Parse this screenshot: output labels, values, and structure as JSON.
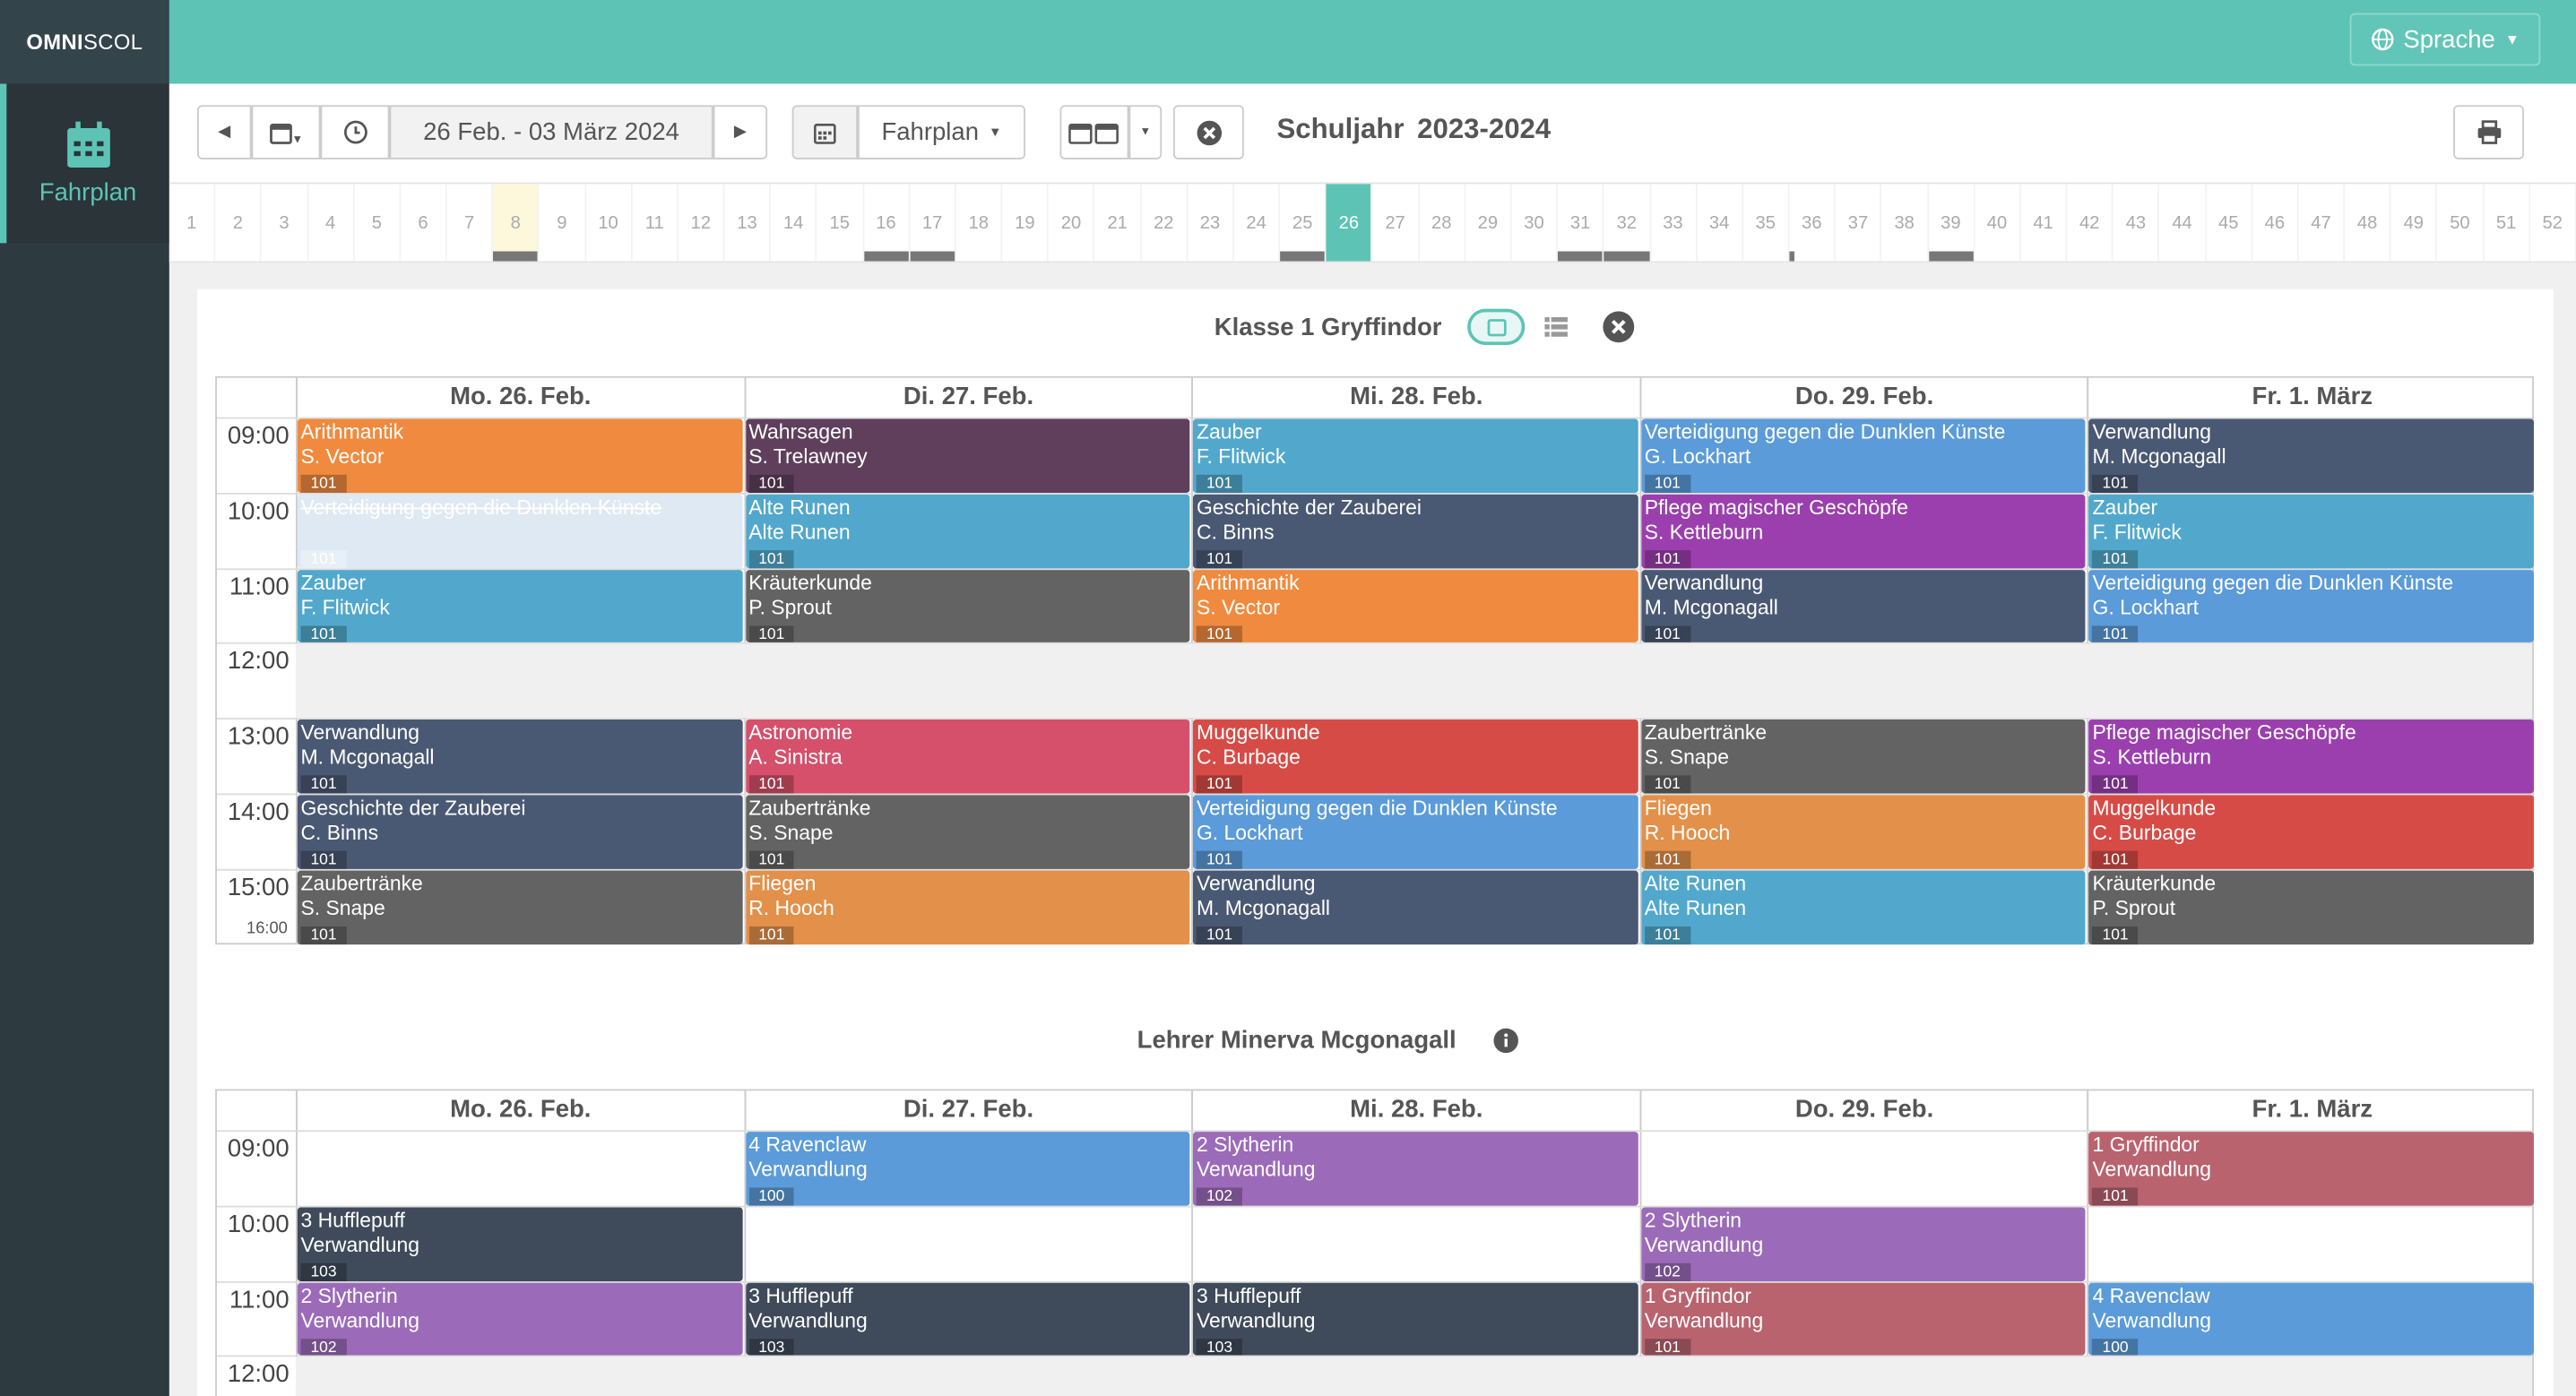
{
  "app": {
    "brand_bold": "OMNI",
    "brand_thin": "SCOL",
    "nav_label": "Fahrplan",
    "language": "Sprache"
  },
  "toolbar": {
    "date_range": "26 Feb. - 03 März 2024",
    "view": "Fahrplan",
    "schuljahr_label": "Schuljahr",
    "schuljahr": "2023-2024"
  },
  "weeks": [
    "1",
    "2",
    "3",
    "4",
    "5",
    "6",
    "7",
    "8",
    "9",
    "10",
    "11",
    "12",
    "13",
    "14",
    "15",
    "16",
    "17",
    "18",
    "19",
    "20",
    "21",
    "22",
    "23",
    "24",
    "25",
    "26",
    "27",
    "28",
    "29",
    "30",
    "31",
    "32",
    "33",
    "34",
    "35",
    "36",
    "37",
    "38",
    "39",
    "40",
    "41",
    "42",
    "43",
    "44",
    "45",
    "46",
    "47",
    "48",
    "49",
    "50",
    "51",
    "52"
  ],
  "colors": {
    "teal": "#5dc4b5",
    "sidebar": "#2d3a40"
  },
  "schedule1": {
    "title": "Klasse 1 Gryffindor",
    "days": [
      "Mo. 26. Feb.",
      "Di. 27. Feb.",
      "Mi. 28. Feb.",
      "Do. 29. Feb.",
      "Fr. 1. März"
    ],
    "times": [
      "09:00",
      "10:00",
      "11:00",
      "12:00",
      "13:00",
      "14:00",
      "15:00"
    ],
    "end_label": "16:00",
    "events": [
      {
        "day": 0,
        "slot": 0,
        "subject": "Arithmantik",
        "teacher": "S. Vector",
        "room": "101",
        "color": "#f08a3e"
      },
      {
        "day": 1,
        "slot": 0,
        "subject": "Wahrsagen",
        "teacher": "S. Trelawney",
        "room": "101",
        "color": "#5f3f5c"
      },
      {
        "day": 2,
        "slot": 0,
        "subject": "Zauber",
        "teacher": "F. Flitwick",
        "room": "101",
        "color": "#52a8cc"
      },
      {
        "day": 3,
        "slot": 0,
        "subject": "Verteidigung gegen die Dunklen Künste",
        "teacher": "G. Lockhart",
        "room": "101",
        "color": "#5b9bd9"
      },
      {
        "day": 4,
        "slot": 0,
        "subject": "Verwandlung",
        "teacher": "M. Mcgonagall",
        "room": "101",
        "color": "#4a5973"
      },
      {
        "day": 0,
        "slot": 1,
        "subject": "Verteidigung gegen die Dunklen Künste",
        "teacher": "",
        "room": "101",
        "color": "#dfe9f3",
        "struck": true
      },
      {
        "day": 1,
        "slot": 1,
        "subject": "Alte Runen",
        "teacher": "Alte Runen",
        "room": "101",
        "color": "#52a8cc"
      },
      {
        "day": 2,
        "slot": 1,
        "subject": "Geschichte der Zauberei",
        "teacher": "C. Binns",
        "room": "101",
        "color": "#4a5973"
      },
      {
        "day": 3,
        "slot": 1,
        "subject": "Pflege magischer Geschöpfe",
        "teacher": "S. Kettleburn",
        "room": "101",
        "color": "#9b3fae"
      },
      {
        "day": 4,
        "slot": 1,
        "subject": "Zauber",
        "teacher": "F. Flitwick",
        "room": "101",
        "color": "#52a8cc"
      },
      {
        "day": 0,
        "slot": 2,
        "subject": "Zauber",
        "teacher": "F. Flitwick",
        "room": "101",
        "color": "#52a8cc"
      },
      {
        "day": 1,
        "slot": 2,
        "subject": "Kräuterkunde",
        "teacher": "P. Sprout",
        "room": "101",
        "color": "#636363"
      },
      {
        "day": 2,
        "slot": 2,
        "subject": "Arithmantik",
        "teacher": "S. Vector",
        "room": "101",
        "color": "#f08a3e"
      },
      {
        "day": 3,
        "slot": 2,
        "subject": "Verwandlung",
        "teacher": "M. Mcgonagall",
        "room": "101",
        "color": "#4a5973"
      },
      {
        "day": 4,
        "slot": 2,
        "subject": "Verteidigung gegen die Dunklen Künste",
        "teacher": "G. Lockhart",
        "room": "101",
        "color": "#5b9bd9"
      },
      {
        "day": 0,
        "slot": 4,
        "subject": "Verwandlung",
        "teacher": "M. Mcgonagall",
        "room": "101",
        "color": "#4a5973"
      },
      {
        "day": 1,
        "slot": 4,
        "subject": "Astronomie",
        "teacher": "A. Sinistra",
        "room": "101",
        "color": "#d64f6b"
      },
      {
        "day": 2,
        "slot": 4,
        "subject": "Muggelkunde",
        "teacher": "C. Burbage",
        "room": "101",
        "color": "#d74b46"
      },
      {
        "day": 3,
        "slot": 4,
        "subject": "Zaubertränke",
        "teacher": "S. Snape",
        "room": "101",
        "color": "#636363"
      },
      {
        "day": 4,
        "slot": 4,
        "subject": "Pflege magischer Geschöpfe",
        "teacher": "S. Kettleburn",
        "room": "101",
        "color": "#9b3fae"
      },
      {
        "day": 0,
        "slot": 5,
        "subject": "Geschichte der Zauberei",
        "teacher": "C. Binns",
        "room": "101",
        "color": "#4a5973"
      },
      {
        "day": 1,
        "slot": 5,
        "subject": "Zaubertränke",
        "teacher": "S. Snape",
        "room": "101",
        "color": "#636363"
      },
      {
        "day": 2,
        "slot": 5,
        "subject": "Verteidigung gegen die Dunklen Künste",
        "teacher": "G. Lockhart",
        "room": "101",
        "color": "#5b9bd9"
      },
      {
        "day": 3,
        "slot": 5,
        "subject": "Fliegen",
        "teacher": "R. Hooch",
        "room": "101",
        "color": "#e3904a"
      },
      {
        "day": 4,
        "slot": 5,
        "subject": "Muggelkunde",
        "teacher": "C. Burbage",
        "room": "101",
        "color": "#d74b46"
      },
      {
        "day": 0,
        "slot": 6,
        "subject": "Zaubertränke",
        "teacher": "S. Snape",
        "room": "101",
        "color": "#636363"
      },
      {
        "day": 1,
        "slot": 6,
        "subject": "Fliegen",
        "teacher": "R. Hooch",
        "room": "101",
        "color": "#e3904a"
      },
      {
        "day": 2,
        "slot": 6,
        "subject": "Verwandlung",
        "teacher": "M. Mcgonagall",
        "room": "101",
        "color": "#4a5973"
      },
      {
        "day": 3,
        "slot": 6,
        "subject": "Alte Runen",
        "teacher": "Alte Runen",
        "room": "101",
        "color": "#52a8cc"
      },
      {
        "day": 4,
        "slot": 6,
        "subject": "Kräuterkunde",
        "teacher": "P. Sprout",
        "room": "101",
        "color": "#636363"
      }
    ]
  },
  "schedule2": {
    "title": "Lehrer Minerva Mcgonagall",
    "days": [
      "Mo. 26. Feb.",
      "Di. 27. Feb.",
      "Mi. 28. Feb.",
      "Do. 29. Feb.",
      "Fr. 1. März"
    ],
    "times": [
      "09:00",
      "10:00",
      "11:00",
      "12:00"
    ],
    "events": [
      {
        "day": 1,
        "slot": 0,
        "subject": "4 Ravenclaw",
        "teacher": "Verwandlung",
        "room": "100",
        "color": "#5b9bd9"
      },
      {
        "day": 2,
        "slot": 0,
        "subject": "2 Slytherin",
        "teacher": "Verwandlung",
        "room": "102",
        "color": "#9b6bb9"
      },
      {
        "day": 4,
        "slot": 0,
        "subject": "1 Gryffindor",
        "teacher": "Verwandlung",
        "room": "101",
        "color": "#b9636f"
      },
      {
        "day": 0,
        "slot": 1,
        "subject": "3 Hufflepuff",
        "teacher": "Verwandlung",
        "room": "103",
        "color": "#3f4a5a"
      },
      {
        "day": 3,
        "slot": 1,
        "subject": "2 Slytherin",
        "teacher": "Verwandlung",
        "room": "102",
        "color": "#9b6bb9"
      },
      {
        "day": 0,
        "slot": 2,
        "subject": "2 Slytherin",
        "teacher": "Verwandlung",
        "room": "102",
        "color": "#9b6bb9"
      },
      {
        "day": 1,
        "slot": 2,
        "subject": "3 Hufflepuff",
        "teacher": "Verwandlung",
        "room": "103",
        "color": "#3f4a5a"
      },
      {
        "day": 2,
        "slot": 2,
        "subject": "3 Hufflepuff",
        "teacher": "Verwandlung",
        "room": "103",
        "color": "#3f4a5a"
      },
      {
        "day": 3,
        "slot": 2,
        "subject": "1 Gryffindor",
        "teacher": "Verwandlung",
        "room": "101",
        "color": "#b9636f"
      },
      {
        "day": 4,
        "slot": 2,
        "subject": "4 Ravenclaw",
        "teacher": "Verwandlung",
        "room": "100",
        "color": "#5b9bd9"
      }
    ]
  }
}
